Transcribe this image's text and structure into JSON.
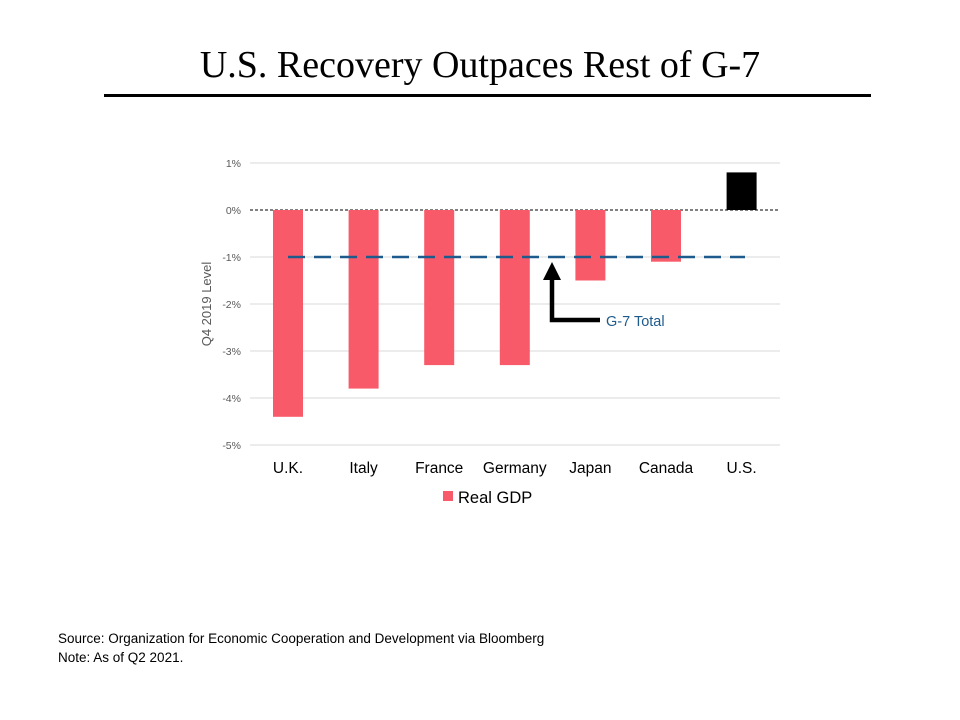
{
  "slide": {
    "title": "U.S. Recovery Outpaces Rest of G-7",
    "source": "Source: Organization for Economic Cooperation and Development via Bloomberg",
    "note": "Note: As of Q2 2021."
  },
  "colors": {
    "series": "#f95a6a",
    "us_bar": "#000000",
    "g7_line": "#1f5a8c",
    "grid": "#d9d9d9",
    "axis_text": "#595959"
  },
  "chart_data": {
    "type": "bar",
    "categories": [
      "U.K.",
      "Italy",
      "France",
      "Germany",
      "Japan",
      "Canada",
      "U.S."
    ],
    "series": [
      {
        "name": "Real GDP",
        "values": [
          -4.4,
          -3.8,
          -3.3,
          -3.3,
          -1.5,
          -1.1,
          0.8
        ]
      }
    ],
    "ylabel": "Q4 2019 Level",
    "ylim": [
      -5,
      1
    ],
    "yticks": [
      1,
      0,
      -1,
      -2,
      -3,
      -4,
      -5
    ],
    "ytick_labels": [
      "1%",
      "0%",
      "-1%",
      "-2%",
      "-3%",
      "-4%",
      "-5%"
    ],
    "grid": true,
    "legend": "bottom",
    "reference_line": {
      "label": "G-7 Total",
      "value": -1.0
    },
    "highlight": {
      "category": "U.S.",
      "color": "#000000"
    }
  }
}
